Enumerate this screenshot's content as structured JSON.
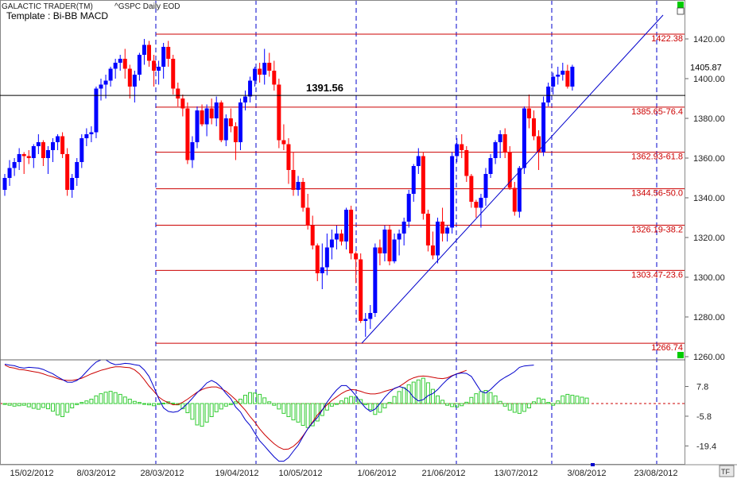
{
  "header": {
    "app_title": "GALACTIC TRADER(TM)",
    "symbol": "^GSPC Daily EOD",
    "template": "Template : Bi-BB MACD"
  },
  "chart_data": [
    {
      "type": "candlestick",
      "ylim": [
        1260,
        1430
      ],
      "y_ticks": [
        "1420.00",
        "1400.00",
        "1380.00",
        "1360.00",
        "1340.00",
        "1320.00",
        "1300.00",
        "1280.00",
        "1260.00"
      ],
      "x_labels": [
        "15/02/2012",
        "8/03/2012",
        "28/03/2012",
        "19/04/2012",
        "10/05/2012",
        "1/06/2012",
        "21/06/2012",
        "13/07/2012",
        "3/08/2012",
        "23/08/2012"
      ],
      "last_price_label": "1405.87",
      "last_price": 1405.87,
      "level_line_value": 1391.56,
      "level_line_label": "1391.56",
      "fib_levels": [
        {
          "value": 1422.38,
          "label": "1422.38"
        },
        {
          "value": 1385.65,
          "label": "1385.65-76.4"
        },
        {
          "value": 1362.93,
          "label": "1362.93-61.8"
        },
        {
          "value": 1344.56,
          "label": "1344.56-50.0"
        },
        {
          "value": 1326.19,
          "label": "1326.19-38.2"
        },
        {
          "value": 1303.47,
          "label": "1303.47-23.6"
        },
        {
          "value": 1266.74,
          "label": "1266.74"
        }
      ],
      "candles": [
        [
          1344,
          1352,
          1341,
          1350
        ],
        [
          1350,
          1359,
          1346,
          1355
        ],
        [
          1355,
          1360,
          1351,
          1358
        ],
        [
          1358,
          1365,
          1354,
          1362
        ],
        [
          1362,
          1363,
          1352,
          1361
        ],
        [
          1361,
          1364,
          1357,
          1360
        ],
        [
          1360,
          1367,
          1355,
          1366
        ],
        [
          1366,
          1372,
          1362,
          1368
        ],
        [
          1368,
          1369,
          1356,
          1360
        ],
        [
          1360,
          1366,
          1352,
          1364
        ],
        [
          1364,
          1370,
          1358,
          1368
        ],
        [
          1368,
          1372,
          1364,
          1371
        ],
        [
          1371,
          1373,
          1360,
          1362
        ],
        [
          1362,
          1365,
          1341,
          1344
        ],
        [
          1344,
          1352,
          1340,
          1350
        ],
        [
          1350,
          1360,
          1346,
          1358
        ],
        [
          1358,
          1372,
          1355,
          1370
        ],
        [
          1370,
          1375,
          1366,
          1372
        ],
        [
          1372,
          1376,
          1368,
          1373
        ],
        [
          1373,
          1396,
          1370,
          1395
        ],
        [
          1395,
          1400,
          1389,
          1397
        ],
        [
          1397,
          1402,
          1390,
          1399
        ],
        [
          1399,
          1406,
          1396,
          1405
        ],
        [
          1405,
          1410,
          1400,
          1408
        ],
        [
          1408,
          1412,
          1404,
          1410
        ],
        [
          1410,
          1415,
          1400,
          1405
        ],
        [
          1405,
          1407,
          1390,
          1396
        ],
        [
          1396,
          1404,
          1388,
          1402
        ],
        [
          1402,
          1413,
          1399,
          1412
        ],
        [
          1412,
          1420,
          1407,
          1417
        ],
        [
          1417,
          1419,
          1406,
          1409
        ],
        [
          1409,
          1412,
          1396,
          1404
        ],
        [
          1404,
          1409,
          1397,
          1406
        ],
        [
          1406,
          1418,
          1400,
          1416
        ],
        [
          1416,
          1419,
          1406,
          1410
        ],
        [
          1410,
          1412,
          1392,
          1395
        ],
        [
          1395,
          1398,
          1386,
          1390
        ],
        [
          1390,
          1392,
          1381,
          1385
        ],
        [
          1385,
          1388,
          1357,
          1359
        ],
        [
          1359,
          1371,
          1355,
          1368
        ],
        [
          1368,
          1386,
          1365,
          1384
        ],
        [
          1384,
          1387,
          1376,
          1377
        ],
        [
          1377,
          1387,
          1371,
          1385
        ],
        [
          1385,
          1390,
          1377,
          1380
        ],
        [
          1380,
          1391,
          1376,
          1388
        ],
        [
          1388,
          1389,
          1368,
          1369
        ],
        [
          1369,
          1382,
          1366,
          1380
        ],
        [
          1380,
          1385,
          1373,
          1376
        ],
        [
          1376,
          1378,
          1359,
          1368
        ],
        [
          1368,
          1390,
          1364,
          1388
        ],
        [
          1388,
          1394,
          1384,
          1391
        ],
        [
          1391,
          1401,
          1388,
          1399
        ],
        [
          1399,
          1406,
          1396,
          1405
        ],
        [
          1405,
          1408,
          1398,
          1402
        ],
        [
          1402,
          1415,
          1397,
          1408
        ],
        [
          1408,
          1413,
          1401,
          1404
        ],
        [
          1404,
          1409,
          1394,
          1397
        ],
        [
          1397,
          1400,
          1365,
          1369
        ],
        [
          1369,
          1377,
          1364,
          1367
        ],
        [
          1367,
          1370,
          1347,
          1354
        ],
        [
          1354,
          1363,
          1341,
          1344
        ],
        [
          1344,
          1351,
          1341,
          1348
        ],
        [
          1348,
          1350,
          1333,
          1335
        ],
        [
          1335,
          1342,
          1324,
          1326
        ],
        [
          1326,
          1331,
          1314,
          1316
        ],
        [
          1316,
          1317,
          1298,
          1302
        ],
        [
          1302,
          1317,
          1294,
          1305
        ],
        [
          1305,
          1322,
          1301,
          1315
        ],
        [
          1315,
          1324,
          1309,
          1319
        ],
        [
          1319,
          1326,
          1314,
          1322
        ],
        [
          1322,
          1324,
          1316,
          1318
        ],
        [
          1318,
          1335,
          1314,
          1334
        ],
        [
          1334,
          1336,
          1309,
          1312
        ],
        [
          1312,
          1313,
          1297,
          1309
        ],
        [
          1309,
          1312,
          1277,
          1278
        ],
        [
          1278,
          1282,
          1270,
          1279
        ],
        [
          1279,
          1286,
          1274,
          1282
        ],
        [
          1282,
          1317,
          1280,
          1315
        ],
        [
          1315,
          1319,
          1306,
          1312
        ],
        [
          1312,
          1326,
          1308,
          1324
        ],
        [
          1324,
          1326,
          1306,
          1308
        ],
        [
          1308,
          1322,
          1307,
          1319
        ],
        [
          1319,
          1324,
          1311,
          1322
        ],
        [
          1322,
          1330,
          1316,
          1328
        ],
        [
          1328,
          1344,
          1325,
          1342
        ],
        [
          1342,
          1357,
          1338,
          1356
        ],
        [
          1356,
          1365,
          1352,
          1361
        ],
        [
          1361,
          1363,
          1329,
          1332
        ],
        [
          1332,
          1334,
          1313,
          1316
        ],
        [
          1316,
          1323,
          1309,
          1311
        ],
        [
          1311,
          1330,
          1307,
          1328
        ],
        [
          1328,
          1335,
          1318,
          1322
        ],
        [
          1322,
          1326,
          1318,
          1325
        ],
        [
          1325,
          1363,
          1322,
          1361
        ],
        [
          1361,
          1370,
          1358,
          1367
        ],
        [
          1367,
          1372,
          1360,
          1364
        ],
        [
          1364,
          1366,
          1348,
          1351
        ],
        [
          1351,
          1352,
          1335,
          1338
        ],
        [
          1338,
          1339,
          1330,
          1335
        ],
        [
          1335,
          1342,
          1325,
          1340
        ],
        [
          1340,
          1355,
          1336,
          1352
        ],
        [
          1352,
          1362,
          1350,
          1360
        ],
        [
          1360,
          1369,
          1357,
          1368
        ],
        [
          1368,
          1374,
          1360,
          1372
        ],
        [
          1372,
          1375,
          1360,
          1363
        ],
        [
          1363,
          1366,
          1344,
          1345
        ],
        [
          1345,
          1348,
          1331,
          1333
        ],
        [
          1333,
          1356,
          1330,
          1355
        ],
        [
          1355,
          1386,
          1352,
          1385
        ],
        [
          1385,
          1392,
          1375,
          1380
        ],
        [
          1380,
          1384,
          1369,
          1371
        ],
        [
          1371,
          1374,
          1354,
          1363
        ],
        [
          1363,
          1391,
          1361,
          1388
        ],
        [
          1388,
          1398,
          1386,
          1396
        ],
        [
          1396,
          1403,
          1392,
          1401
        ],
        [
          1401,
          1406,
          1397,
          1402
        ],
        [
          1402,
          1408,
          1399,
          1404
        ],
        [
          1404,
          1407,
          1395,
          1396
        ],
        [
          1396,
          1407,
          1394,
          1406
        ]
      ]
    },
    {
      "type": "macd",
      "ylim": [
        -28,
        20
      ],
      "y_ticks": [
        "7.8",
        "-5.8",
        "-19.4"
      ],
      "histogram": [
        -0.4,
        -0.8,
        -1.2,
        -1.0,
        -0.8,
        -1.5,
        -2.2,
        -2.6,
        -1.8,
        -2.4,
        -3.5,
        -5.2,
        -6.0,
        -4.0,
        -2.0,
        -0.5,
        0.5,
        1.2,
        2.0,
        3.5,
        4.5,
        5.2,
        5.6,
        5.0,
        4.2,
        3.0,
        2.0,
        1.0,
        0.5,
        -0.2,
        -0.6,
        -1.0,
        -0.4,
        0.2,
        0.8,
        0.2,
        -0.6,
        -2.4,
        -4.2,
        -7.2,
        -9.8,
        -10.4,
        -8.5,
        -6.0,
        -3.8,
        -2.5,
        -1.2,
        -0.5,
        0.8,
        2.0,
        3.8,
        5.0,
        4.8,
        4.2,
        2.6,
        0.8,
        -0.8,
        -2.5,
        -4.5,
        -6.0,
        -7.5,
        -8.5,
        -10.0,
        -11.0,
        -10.2,
        -8.0,
        -5.5,
        -3.0,
        -1.2,
        -0.4,
        1.2,
        2.5,
        3.2,
        3.0,
        1.8,
        -0.5,
        -2.8,
        -5.0,
        -4.0,
        -2.0,
        0.5,
        3.2,
        5.5,
        7.2,
        8.6,
        9.8,
        10.8,
        11.6,
        9.5,
        6.5,
        3.5,
        1.5,
        -0.8,
        -1.4,
        -1.6,
        -1.0,
        0.6,
        2.8,
        4.5,
        5.5,
        6.0,
        5.0,
        3.5,
        1.0,
        -1.2,
        -3.0,
        -4.0,
        -4.5,
        -3.6,
        -2.0,
        0.8,
        2.5,
        2.0,
        0.5,
        -0.8,
        1.2,
        3.5,
        4.2,
        3.8,
        3.4,
        2.9,
        2.5
      ],
      "macd": [
        18,
        17.6,
        17.3,
        16.6,
        16.2,
        16.6,
        16.4,
        16.2,
        15.6,
        14.6,
        13.6,
        12.2,
        11,
        9.8,
        9.7,
        10.6,
        12.2,
        14.6,
        17,
        19,
        20,
        20,
        18.6,
        17.8,
        18,
        18.4,
        18.2,
        17.8,
        17.4,
        15.4,
        12.4,
        7.6,
        2.2,
        -2,
        -3.6,
        -4,
        -3.6,
        -2,
        0,
        2.4,
        5,
        7,
        9.4,
        10.6,
        9.4,
        7.4,
        4.6,
        2.2,
        -1.6,
        -3.8,
        -7.4,
        -10,
        -13.6,
        -17,
        -19.4,
        -22,
        -24.4,
        -26.4,
        -26.4,
        -24.8,
        -21.8,
        -19,
        -15.2,
        -11.6,
        -8.8,
        -6.4,
        -3,
        0.6,
        3.6,
        6.2,
        8.2,
        8.2,
        6.2,
        3.6,
        0.6,
        -2,
        -3.6,
        -2.6,
        0,
        2.8,
        5.2,
        7,
        7.8,
        7.2,
        5.6,
        2.8,
        1.2,
        1.8,
        3.6,
        4.6,
        6.4,
        8.8,
        11,
        12.6,
        13.6,
        14,
        13.8,
        12.4,
        9,
        5.6,
        4.8,
        6.4,
        8.6,
        10.6,
        12,
        13.2,
        14.6,
        16.6,
        17.2,
        17.4,
        17.6
      ],
      "signal": [
        17.6,
        16.6,
        16.2,
        15.6,
        15.4,
        15,
        14.6,
        14.2,
        13.6,
        12.8,
        12.2,
        11.4,
        10.8,
        10.6,
        10.6,
        11,
        11.6,
        12.6,
        13.6,
        14.4,
        15.2,
        15.8,
        16.4,
        16.8,
        16.8,
        16.6,
        16.4,
        15.4,
        13.6,
        11,
        8,
        5.6,
        3,
        1.4,
        0.4,
        -0.6,
        -0.4,
        0.6,
        2,
        3.6,
        5.2,
        6.4,
        7.2,
        7.6,
        7.6,
        6.8,
        5.6,
        3.8,
        1.8,
        -0.6,
        -3,
        -6,
        -8.6,
        -11.6,
        -14.2,
        -16.4,
        -18.4,
        -20,
        -21,
        -20.8,
        -19.6,
        -17.6,
        -14.8,
        -11.6,
        -8.4,
        -5.2,
        -2.8,
        -0.6,
        1.4,
        3,
        4.6,
        5.8,
        6.4,
        6.2,
        5.6,
        4.8,
        4.4,
        4.4,
        4.8,
        5.6,
        6.2,
        6.8,
        7.8,
        9.2,
        10.8,
        11.8,
        12.4,
        12.6,
        12.4,
        12,
        11.6,
        11.4,
        11.8,
        12.8,
        13.6,
        14.4,
        15.2
      ]
    }
  ],
  "colors": {
    "up": "#0000ff",
    "down": "#ff0000",
    "fib_line": "#cc0000",
    "vertical_lines": "#0000cc",
    "trendline": "#0000cc",
    "histogram": "#33cc33",
    "signal": "#cc0000",
    "macd": "#0000cc",
    "corner_marker": "#00cc00"
  },
  "corner_buttons": [
    "tf-icon"
  ]
}
